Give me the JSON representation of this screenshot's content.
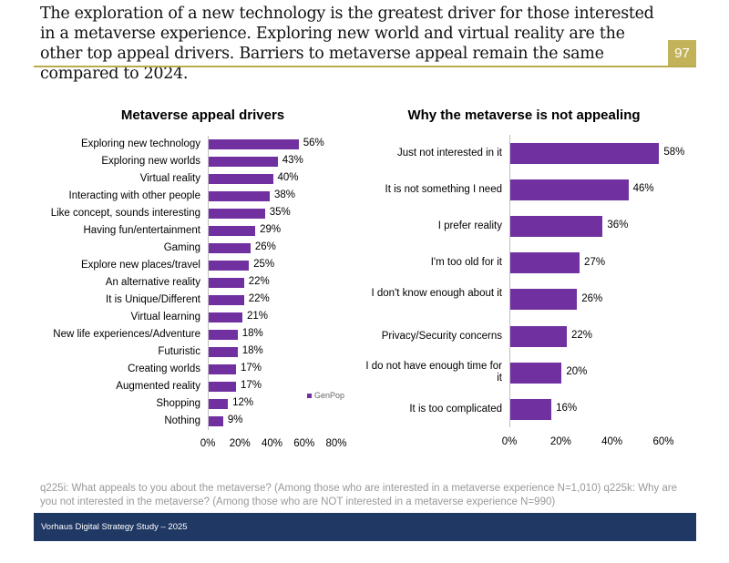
{
  "headline": "The exploration of a new technology is the greatest driver for those interested in a metaverse experience. Exploring new world and virtual reality are the other top appeal drivers. Barriers to metaverse appeal remain the same compared to 2024.",
  "page_number": "97",
  "note": "q225i: What appeals to you about the metaverse? (Among those who are interested in a metaverse experience N=1,010) q225k: Why are you not interested in the metaverse? (Among those who are NOT interested in a metaverse experience N=990)",
  "footer": "Vorhaus Digital Strategy Study – 2025",
  "colors": {
    "bar": "#7030a0",
    "accent": "#c2b35a",
    "footer": "#203864"
  },
  "chart_data": [
    {
      "type": "bar",
      "orientation": "horizontal",
      "title": "Metaverse appeal drivers",
      "legend": [
        "GenPop"
      ],
      "legend_position": "bottom-right",
      "xlim": [
        0,
        80
      ],
      "xticks": [
        "0%",
        "20%",
        "40%",
        "60%",
        "80%"
      ],
      "categories": [
        "Exploring new technology",
        "Exploring new worlds",
        "Virtual reality",
        "Interacting with other people",
        "Like concept, sounds interesting",
        "Having fun/entertainment",
        "Gaming",
        "Explore new places/travel",
        "An alternative reality",
        "It is Unique/Different",
        "Virtual learning",
        "New life experiences/Adventure",
        "Futuristic",
        "Creating worlds",
        "Augmented reality",
        "Shopping",
        "Nothing"
      ],
      "values": [
        56,
        43,
        40,
        38,
        35,
        29,
        26,
        25,
        22,
        22,
        21,
        18,
        18,
        17,
        17,
        12,
        9
      ]
    },
    {
      "type": "bar",
      "orientation": "horizontal",
      "title": "Why the metaverse is not appealing",
      "xlim": [
        0,
        60
      ],
      "xticks": [
        "0%",
        "20%",
        "40%",
        "60%"
      ],
      "categories": [
        "Just not interested in it",
        "It is not something I need",
        "I prefer reality",
        "I'm too old for it",
        "I don't know enough about it",
        "Privacy/Security concerns",
        "I do not have enough time for it",
        "It is too complicated"
      ],
      "values": [
        58,
        46,
        36,
        27,
        26,
        22,
        20,
        16
      ]
    }
  ]
}
